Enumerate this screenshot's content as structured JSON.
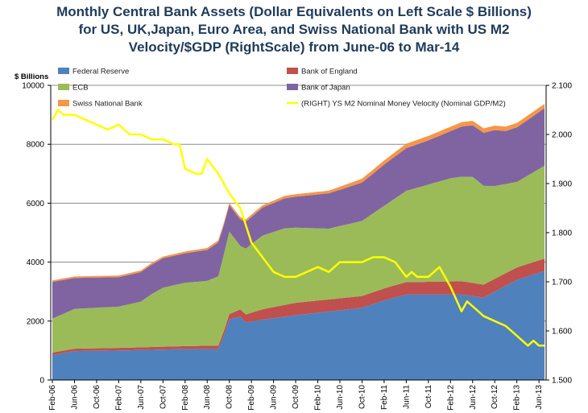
{
  "chart_data": {
    "type": "area",
    "title_lines": [
      "Monthly Central Bank Assets (Dollar Equivalents on Left Scale $ Billions)",
      "for US, UK,Japan, Euro Area, and Swiss National Bank with US M2",
      "Velocity/$GDP  (RightScale)  from June-06 to Mar-14"
    ],
    "left_axis": {
      "unit_label": "$ Billions",
      "ylim": [
        0,
        10000
      ],
      "ticks": [
        "0",
        "2000",
        "4000",
        "6000",
        "8000",
        "10000"
      ]
    },
    "right_axis": {
      "ylim": [
        1.5,
        2.1
      ],
      "ticks": [
        "1.500",
        "1.600",
        "1.700",
        "1.800",
        "1.900",
        "2.000",
        "2.100"
      ]
    },
    "x_ticks": [
      "Feb-06",
      "Jun-06",
      "Oct-06",
      "Feb-07",
      "Jun-07",
      "Oct-07",
      "Feb-08",
      "Jun-08",
      "Oct-08",
      "Feb-09",
      "Jun-09",
      "Oct-09",
      "Feb-10",
      "Jun-10",
      "Oct-10",
      "Feb-11",
      "Jun-11",
      "Oct-11",
      "Feb-12",
      "Jun-12",
      "Oct-12",
      "Feb-13",
      "Jun-13"
    ],
    "grid": "horizontal",
    "legend_placement": "top",
    "x_index_range": [
      0,
      89
    ],
    "series": [
      {
        "name": "Federal Reserve",
        "color": "#4f81bd",
        "axis": "left",
        "points": [
          [
            0,
            850
          ],
          [
            4,
            980
          ],
          [
            12,
            1000
          ],
          [
            24,
            1050
          ],
          [
            30,
            1050
          ],
          [
            31,
            1500
          ],
          [
            32,
            2050
          ],
          [
            34,
            2150
          ],
          [
            35,
            1950
          ],
          [
            38,
            2050
          ],
          [
            44,
            2200
          ],
          [
            56,
            2450
          ],
          [
            60,
            2700
          ],
          [
            64,
            2900
          ],
          [
            68,
            2900
          ],
          [
            74,
            2900
          ],
          [
            78,
            2800
          ],
          [
            80,
            3000
          ],
          [
            84,
            3400
          ],
          [
            89,
            3700
          ]
        ]
      },
      {
        "name": "Bank of England",
        "color": "#c0504d",
        "axis": "left",
        "points": [
          [
            0,
            80
          ],
          [
            24,
            100
          ],
          [
            30,
            120
          ],
          [
            34,
            250
          ],
          [
            38,
            350
          ],
          [
            44,
            420
          ],
          [
            56,
            400
          ],
          [
            64,
            420
          ],
          [
            74,
            450
          ],
          [
            84,
            420
          ],
          [
            89,
            420
          ]
        ]
      },
      {
        "name": "ECB",
        "color": "#9bbb59",
        "axis": "left",
        "points": [
          [
            0,
            1150
          ],
          [
            4,
            1350
          ],
          [
            12,
            1400
          ],
          [
            16,
            1550
          ],
          [
            18,
            1800
          ],
          [
            20,
            2000
          ],
          [
            24,
            2150
          ],
          [
            28,
            2200
          ],
          [
            30,
            2350
          ],
          [
            31,
            2600
          ],
          [
            32,
            2800
          ],
          [
            34,
            2150
          ],
          [
            38,
            2500
          ],
          [
            42,
            2600
          ],
          [
            46,
            2500
          ],
          [
            50,
            2400
          ],
          [
            56,
            2550
          ],
          [
            60,
            2800
          ],
          [
            64,
            3100
          ],
          [
            68,
            3300
          ],
          [
            72,
            3500
          ],
          [
            74,
            3550
          ],
          [
            76,
            3600
          ],
          [
            78,
            3350
          ],
          [
            80,
            3150
          ],
          [
            84,
            2900
          ],
          [
            89,
            3150
          ]
        ]
      },
      {
        "name": "Bank of Japan",
        "color": "#8064a2",
        "axis": "left",
        "points": [
          [
            0,
            1250
          ],
          [
            4,
            1050
          ],
          [
            12,
            1000
          ],
          [
            20,
            1000
          ],
          [
            24,
            1000
          ],
          [
            28,
            1050
          ],
          [
            30,
            1150
          ],
          [
            31,
            1000
          ],
          [
            32,
            900
          ],
          [
            34,
            900
          ],
          [
            38,
            950
          ],
          [
            44,
            1050
          ],
          [
            50,
            1200
          ],
          [
            56,
            1300
          ],
          [
            60,
            1400
          ],
          [
            64,
            1450
          ],
          [
            68,
            1500
          ],
          [
            72,
            1600
          ],
          [
            74,
            1700
          ],
          [
            76,
            1750
          ],
          [
            78,
            1800
          ],
          [
            80,
            1900
          ],
          [
            82,
            1800
          ],
          [
            84,
            1850
          ],
          [
            89,
            1950
          ]
        ]
      },
      {
        "name": "Swiss National Bank",
        "color": "#f79646",
        "axis": "left",
        "points": [
          [
            0,
            50
          ],
          [
            24,
            60
          ],
          [
            30,
            70
          ],
          [
            38,
            80
          ],
          [
            50,
            90
          ],
          [
            56,
            130
          ],
          [
            64,
            150
          ],
          [
            70,
            150
          ],
          [
            74,
            150
          ],
          [
            80,
            150
          ],
          [
            84,
            150
          ],
          [
            89,
            150
          ]
        ]
      },
      {
        "name": "(RIGHT) YS M2 Nominal Money Velocity (Nominal GDP/M2)",
        "color": "#ffff00",
        "axis": "right",
        "points": [
          [
            0,
            2.03
          ],
          [
            1,
            2.05
          ],
          [
            2,
            2.04
          ],
          [
            4,
            2.04
          ],
          [
            6,
            2.03
          ],
          [
            8,
            2.02
          ],
          [
            10,
            2.01
          ],
          [
            12,
            2.02
          ],
          [
            14,
            2.0
          ],
          [
            16,
            2.0
          ],
          [
            18,
            1.99
          ],
          [
            20,
            1.99
          ],
          [
            22,
            1.98
          ],
          [
            23,
            1.98
          ],
          [
            24,
            1.93
          ],
          [
            26,
            1.92
          ],
          [
            27,
            1.92
          ],
          [
            28,
            1.95
          ],
          [
            30,
            1.92
          ],
          [
            32,
            1.88
          ],
          [
            34,
            1.85
          ],
          [
            36,
            1.78
          ],
          [
            38,
            1.75
          ],
          [
            40,
            1.72
          ],
          [
            42,
            1.71
          ],
          [
            44,
            1.71
          ],
          [
            46,
            1.72
          ],
          [
            48,
            1.73
          ],
          [
            50,
            1.72
          ],
          [
            52,
            1.74
          ],
          [
            54,
            1.74
          ],
          [
            56,
            1.74
          ],
          [
            58,
            1.75
          ],
          [
            60,
            1.75
          ],
          [
            62,
            1.74
          ],
          [
            64,
            1.71
          ],
          [
            65,
            1.72
          ],
          [
            66,
            1.71
          ],
          [
            68,
            1.71
          ],
          [
            70,
            1.73
          ],
          [
            72,
            1.69
          ],
          [
            74,
            1.64
          ],
          [
            75,
            1.66
          ],
          [
            76,
            1.65
          ],
          [
            78,
            1.63
          ],
          [
            80,
            1.62
          ],
          [
            82,
            1.61
          ],
          [
            84,
            1.59
          ],
          [
            86,
            1.57
          ],
          [
            87,
            1.58
          ],
          [
            88,
            1.57
          ],
          [
            89,
            1.57
          ]
        ]
      }
    ]
  }
}
